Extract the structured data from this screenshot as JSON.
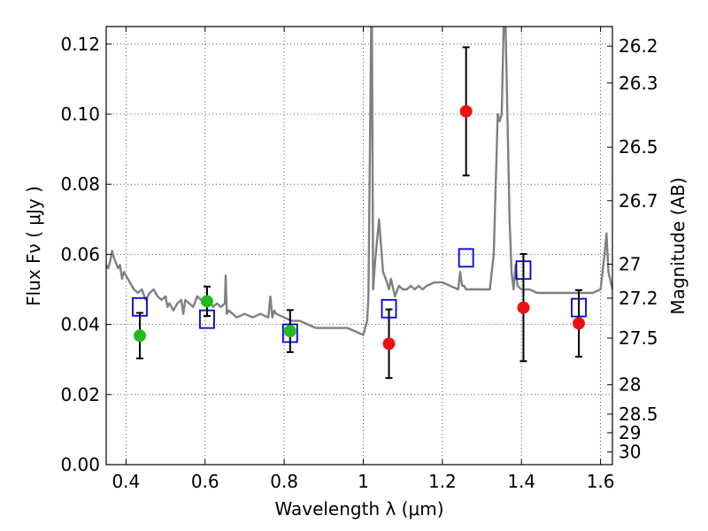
{
  "chart_data": {
    "type": "scatter",
    "title": "",
    "xlabel": "Wavelength  λ (μm)",
    "ylabel": "Flux  Fν  ( μJy )",
    "y2label": "Magnitude (AB)",
    "xlim": [
      0.35,
      1.63
    ],
    "ylim": [
      0.0,
      0.125
    ],
    "grid": true,
    "x_ticks": [
      0.4,
      0.6,
      0.8,
      1.0,
      1.2,
      1.4,
      1.6
    ],
    "x_tick_labels": [
      "0.4",
      "0.6",
      "0.8",
      "1",
      "1.2",
      "1.4",
      "1.6"
    ],
    "y_ticks": [
      0.0,
      0.02,
      0.04,
      0.06,
      0.08,
      0.1,
      0.12
    ],
    "y_tick_labels": [
      "0.00",
      "0.02",
      "0.04",
      "0.06",
      "0.08",
      "0.10",
      "0.12"
    ],
    "y2_ticks": [
      {
        "label": "26.2",
        "flux": 0.1194
      },
      {
        "label": "26.3",
        "flux": 0.1089
      },
      {
        "label": "26.5",
        "flux": 0.0906
      },
      {
        "label": "26.7",
        "flux": 0.0753
      },
      {
        "label": "27",
        "flux": 0.0572
      },
      {
        "label": "27.2",
        "flux": 0.0475
      },
      {
        "label": "27.5",
        "flux": 0.0361
      },
      {
        "label": "28",
        "flux": 0.0228
      },
      {
        "label": "28.5",
        "flux": 0.0144
      },
      {
        "label": "29",
        "flux": 0.0091
      },
      {
        "label": "30",
        "flux": 0.0036
      }
    ],
    "colors": {
      "spectrum": "#808080",
      "model": "#0000dd",
      "green": "#22bb22",
      "red": "#ee1111",
      "errorbar": "#000000"
    },
    "series": [
      {
        "kind": "spectrum",
        "x": [
          0.35,
          0.355,
          0.36,
          0.365,
          0.37,
          0.38,
          0.385,
          0.39,
          0.395,
          0.4,
          0.41,
          0.42,
          0.43,
          0.44,
          0.45,
          0.46,
          0.47,
          0.48,
          0.49,
          0.5,
          0.505,
          0.51,
          0.52,
          0.53,
          0.54,
          0.545,
          0.55,
          0.56,
          0.57,
          0.58,
          0.59,
          0.6,
          0.61,
          0.62,
          0.63,
          0.64,
          0.65,
          0.652,
          0.655,
          0.66,
          0.67,
          0.68,
          0.7,
          0.72,
          0.74,
          0.76,
          0.765,
          0.77,
          0.775,
          0.78,
          0.8,
          0.82,
          0.84,
          0.86,
          0.88,
          0.9,
          0.92,
          0.94,
          0.96,
          0.98,
          1.0,
          1.01,
          1.013,
          1.016,
          1.02,
          1.022,
          1.025,
          1.03,
          1.04,
          1.05,
          1.06,
          1.065,
          1.07,
          1.08,
          1.09,
          1.1,
          1.11,
          1.12,
          1.13,
          1.14,
          1.15,
          1.16,
          1.18,
          1.2,
          1.22,
          1.24,
          1.245,
          1.25,
          1.255,
          1.26,
          1.28,
          1.3,
          1.32,
          1.33,
          1.34,
          1.345,
          1.35,
          1.355,
          1.36,
          1.37,
          1.375,
          1.38,
          1.385,
          1.39,
          1.4,
          1.42,
          1.44,
          1.46,
          1.48,
          1.5,
          1.52,
          1.54,
          1.56,
          1.58,
          1.6,
          1.61,
          1.615,
          1.62,
          1.63
        ],
        "y": [
          0.057,
          0.056,
          0.058,
          0.061,
          0.059,
          0.056,
          0.057,
          0.053,
          0.055,
          0.054,
          0.052,
          0.05,
          0.049,
          0.05,
          0.047,
          0.049,
          0.05,
          0.048,
          0.047,
          0.048,
          0.045,
          0.046,
          0.044,
          0.046,
          0.047,
          0.043,
          0.047,
          0.046,
          0.045,
          0.048,
          0.047,
          0.046,
          0.047,
          0.045,
          0.046,
          0.045,
          0.046,
          0.054,
          0.043,
          0.044,
          0.043,
          0.042,
          0.043,
          0.042,
          0.043,
          0.042,
          0.048,
          0.042,
          0.044,
          0.043,
          0.042,
          0.041,
          0.041,
          0.04,
          0.039,
          0.039,
          0.039,
          0.039,
          0.039,
          0.038,
          0.037,
          0.041,
          0.048,
          0.08,
          0.125,
          0.125,
          0.05,
          0.058,
          0.07,
          0.055,
          0.052,
          0.05,
          0.053,
          0.048,
          0.051,
          0.05,
          0.05,
          0.051,
          0.05,
          0.051,
          0.05,
          0.051,
          0.052,
          0.052,
          0.051,
          0.05,
          0.055,
          0.051,
          0.051,
          0.05,
          0.05,
          0.05,
          0.05,
          0.06,
          0.1,
          0.098,
          0.1,
          0.125,
          0.125,
          0.07,
          0.055,
          0.05,
          0.057,
          0.051,
          0.05,
          0.05,
          0.049,
          0.049,
          0.049,
          0.049,
          0.049,
          0.049,
          0.049,
          0.049,
          0.05,
          0.06,
          0.066,
          0.055,
          0.05
        ]
      },
      {
        "kind": "model-squares",
        "x": [
          0.435,
          0.605,
          0.815,
          1.065,
          1.26,
          1.405,
          1.545
        ],
        "y": [
          0.045,
          0.0415,
          0.0375,
          0.0445,
          0.059,
          0.0555,
          0.0448
        ]
      },
      {
        "kind": "green-points",
        "x": [
          0.435,
          0.605,
          0.815
        ],
        "y": [
          0.0368,
          0.0466,
          0.0381
        ],
        "yerr": [
          0.0065,
          0.0042,
          0.006
        ]
      },
      {
        "kind": "red-points",
        "x": [
          1.065,
          1.26,
          1.405,
          1.545
        ],
        "y": [
          0.0345,
          0.1008,
          0.0448,
          0.0403
        ],
        "yerr": [
          0.0098,
          0.0183,
          0.0153,
          0.0095
        ]
      }
    ]
  }
}
